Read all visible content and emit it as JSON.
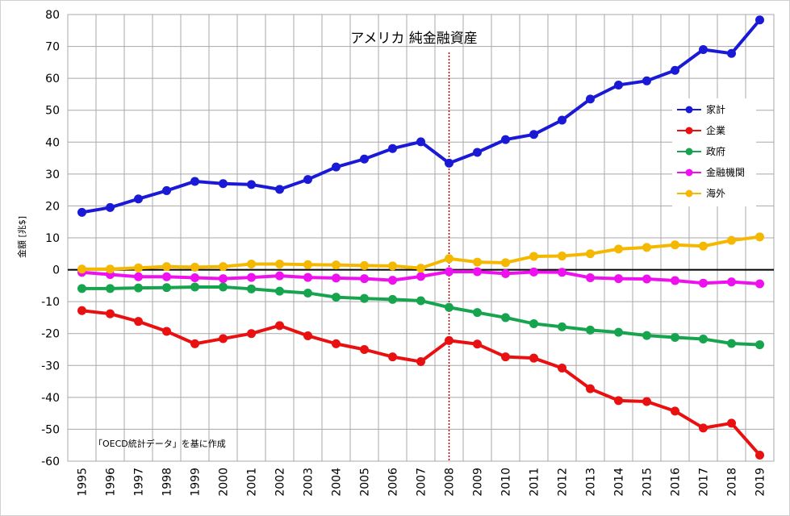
{
  "chart_data": {
    "type": "line",
    "title": "アメリカ 純金融資産",
    "ylabel": "金額 [兆$]",
    "xlabel": "",
    "note": "「OECD統計データ」を基に作成",
    "categories": [
      "1995",
      "1996",
      "1997",
      "1998",
      "1999",
      "2000",
      "2001",
      "2002",
      "2003",
      "2004",
      "2005",
      "2006",
      "2007",
      "2008",
      "2009",
      "2010",
      "2011",
      "2012",
      "2013",
      "2014",
      "2015",
      "2016",
      "2017",
      "2018",
      "2019"
    ],
    "ylim": [
      -60,
      80
    ],
    "yticks": [
      "80",
      "70",
      "60",
      "50",
      "40",
      "30",
      "20",
      "10",
      "0",
      "-10",
      "-20",
      "-30",
      "-40",
      "-50",
      "-60"
    ],
    "grid": true,
    "legend_position": "right",
    "reference_line": {
      "x": "2008",
      "style": "dotted",
      "color": "#c00000"
    },
    "series": [
      {
        "name": "家計",
        "color": "#1a1ad6",
        "values": [
          18.0,
          19.5,
          22.2,
          24.8,
          27.7,
          27.0,
          26.7,
          25.2,
          28.3,
          32.2,
          34.7,
          38.0,
          40.1,
          33.4,
          36.8,
          40.8,
          42.4,
          46.9,
          53.5,
          57.9,
          59.2,
          62.5,
          69.0,
          67.8,
          78.3
        ]
      },
      {
        "name": "企業",
        "color": "#e81010",
        "values": [
          -12.8,
          -13.8,
          -16.2,
          -19.3,
          -23.2,
          -21.6,
          -20.0,
          -17.5,
          -20.7,
          -23.2,
          -25.0,
          -27.3,
          -28.8,
          -22.2,
          -23.3,
          -27.3,
          -27.7,
          -30.8,
          -37.3,
          -41.0,
          -41.3,
          -44.3,
          -49.6,
          -48.1,
          -58.1
        ]
      },
      {
        "name": "政府",
        "color": "#17a44e",
        "values": [
          -5.9,
          -5.9,
          -5.7,
          -5.6,
          -5.4,
          -5.4,
          -6.0,
          -6.7,
          -7.3,
          -8.6,
          -9.0,
          -9.3,
          -9.7,
          -11.8,
          -13.4,
          -15.0,
          -16.9,
          -17.9,
          -18.9,
          -19.6,
          -20.6,
          -21.2,
          -21.7,
          -23.1,
          -23.5
        ]
      },
      {
        "name": "金融機関",
        "color": "#ee10ee",
        "values": [
          -0.8,
          -1.5,
          -2.2,
          -2.2,
          -2.5,
          -2.8,
          -2.4,
          -1.9,
          -2.4,
          -2.6,
          -2.8,
          -3.3,
          -2.1,
          -0.6,
          -0.6,
          -1.2,
          -0.7,
          -0.8,
          -2.5,
          -2.8,
          -2.9,
          -3.4,
          -4.2,
          -3.8,
          -4.4
        ]
      },
      {
        "name": "海外",
        "color": "#f5b800",
        "values": [
          0.2,
          0.2,
          0.6,
          1.0,
          0.8,
          1.0,
          1.8,
          1.8,
          1.6,
          1.5,
          1.3,
          1.2,
          0.5,
          3.5,
          2.4,
          2.2,
          4.2,
          4.3,
          5.0,
          6.5,
          7.0,
          7.8,
          7.4,
          9.2,
          10.3
        ]
      }
    ]
  }
}
